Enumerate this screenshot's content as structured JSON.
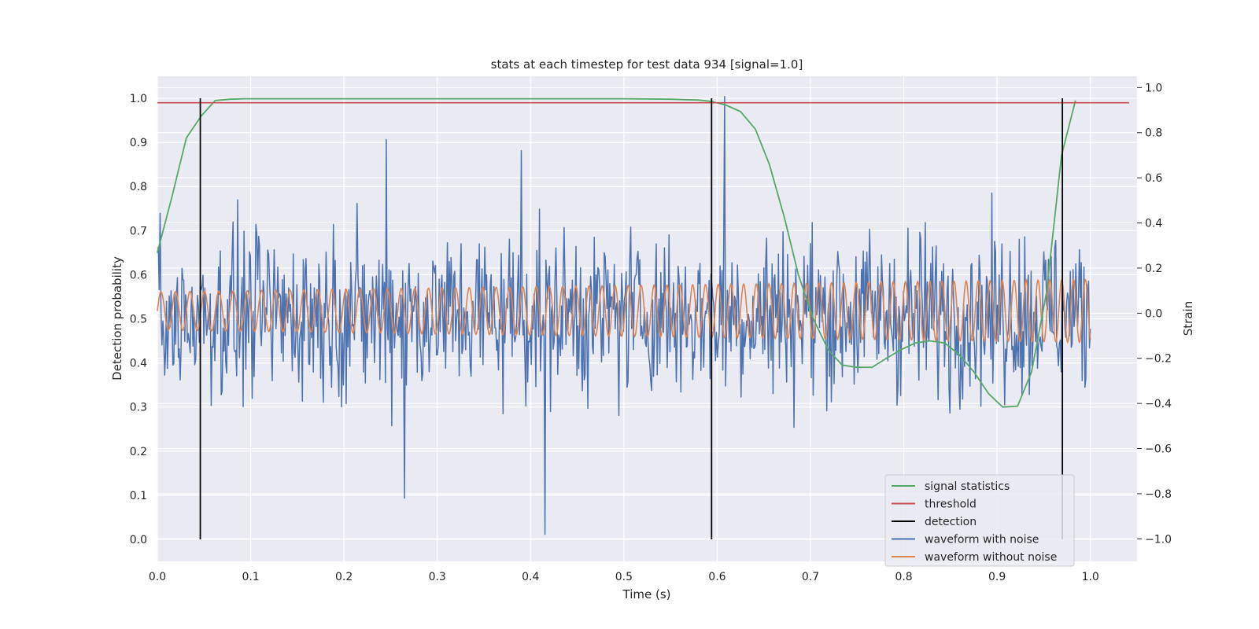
{
  "chart_data": {
    "type": "line",
    "title": "stats at each timestep for test data 934 [signal=1.0]",
    "xlabel": "Time (s)",
    "ylabel": "Detection probability",
    "y2label": "Strain",
    "xlim": [
      0.0,
      1.05
    ],
    "ylim": [
      -0.05,
      1.05
    ],
    "y2lim": [
      -1.1,
      1.05
    ],
    "xticks": [
      "0.0",
      "0.1",
      "0.2",
      "0.3",
      "0.4",
      "0.5",
      "0.6",
      "0.7",
      "0.8",
      "0.9",
      "1.0"
    ],
    "yticks": [
      "0.0",
      "0.1",
      "0.2",
      "0.3",
      "0.4",
      "0.5",
      "0.6",
      "0.7",
      "0.8",
      "0.9",
      "1.0"
    ],
    "y2ticks": [
      "−1.0",
      "−0.8",
      "−0.6",
      "−0.4",
      "−0.2",
      "0.0",
      "0.2",
      "0.4",
      "0.6",
      "0.8",
      "1.0"
    ],
    "grid": true,
    "legend_position": "lower-right",
    "threshold": 0.99,
    "detections": [
      0.046,
      0.594,
      0.97
    ],
    "signal_statistics": {
      "name": "signal statistics",
      "color": "#55a868",
      "x": [
        0.0,
        0.016,
        0.031,
        0.047,
        0.062,
        0.078,
        0.094,
        0.2,
        0.3,
        0.4,
        0.5,
        0.55,
        0.58,
        0.594,
        0.609,
        0.625,
        0.641,
        0.656,
        0.672,
        0.687,
        0.703,
        0.719,
        0.734,
        0.75,
        0.766,
        0.781,
        0.797,
        0.812,
        0.828,
        0.844,
        0.859,
        0.875,
        0.891,
        0.906,
        0.922,
        0.937,
        0.953,
        0.969,
        0.984
      ],
      "y": [
        0.65,
        0.78,
        0.91,
        0.96,
        0.995,
        0.998,
        0.999,
        0.999,
        0.999,
        0.999,
        0.999,
        0.998,
        0.996,
        0.993,
        0.985,
        0.97,
        0.93,
        0.85,
        0.73,
        0.6,
        0.5,
        0.43,
        0.395,
        0.39,
        0.39,
        0.41,
        0.43,
        0.445,
        0.45,
        0.445,
        0.42,
        0.38,
        0.33,
        0.3,
        0.302,
        0.38,
        0.56,
        0.87,
        0.995
      ]
    },
    "noisy_waveform": {
      "name": "waveform with noise",
      "color": "#4c72b0",
      "sample_count": 1024,
      "x_range": [
        0.0,
        1.0
      ],
      "spread": 0.33,
      "extremes": [
        {
          "x": 0.265,
          "y": -0.82
        },
        {
          "x": 0.415,
          "y": -0.98
        },
        {
          "x": 0.608,
          "y": 0.96
        },
        {
          "x": 0.39,
          "y": 0.72
        },
        {
          "x": 0.245,
          "y": 0.77
        }
      ]
    },
    "clean_waveform": {
      "name": "waveform without noise",
      "color": "#dd8452",
      "x_range": [
        0.0,
        1.0
      ],
      "cycles": 64,
      "amp_start": 0.085,
      "amp_end": 0.14,
      "offset": 0.01
    },
    "threshold_color": "#c44e52",
    "detection_color": "#000000",
    "legend": [
      {
        "label": "signal statistics",
        "color": "#55a868"
      },
      {
        "label": "threshold",
        "color": "#c44e52"
      },
      {
        "label": "detection",
        "color": "#000000"
      },
      {
        "label": "waveform with noise",
        "color": "#4c72b0"
      },
      {
        "label": "waveform without noise",
        "color": "#dd8452"
      }
    ]
  }
}
